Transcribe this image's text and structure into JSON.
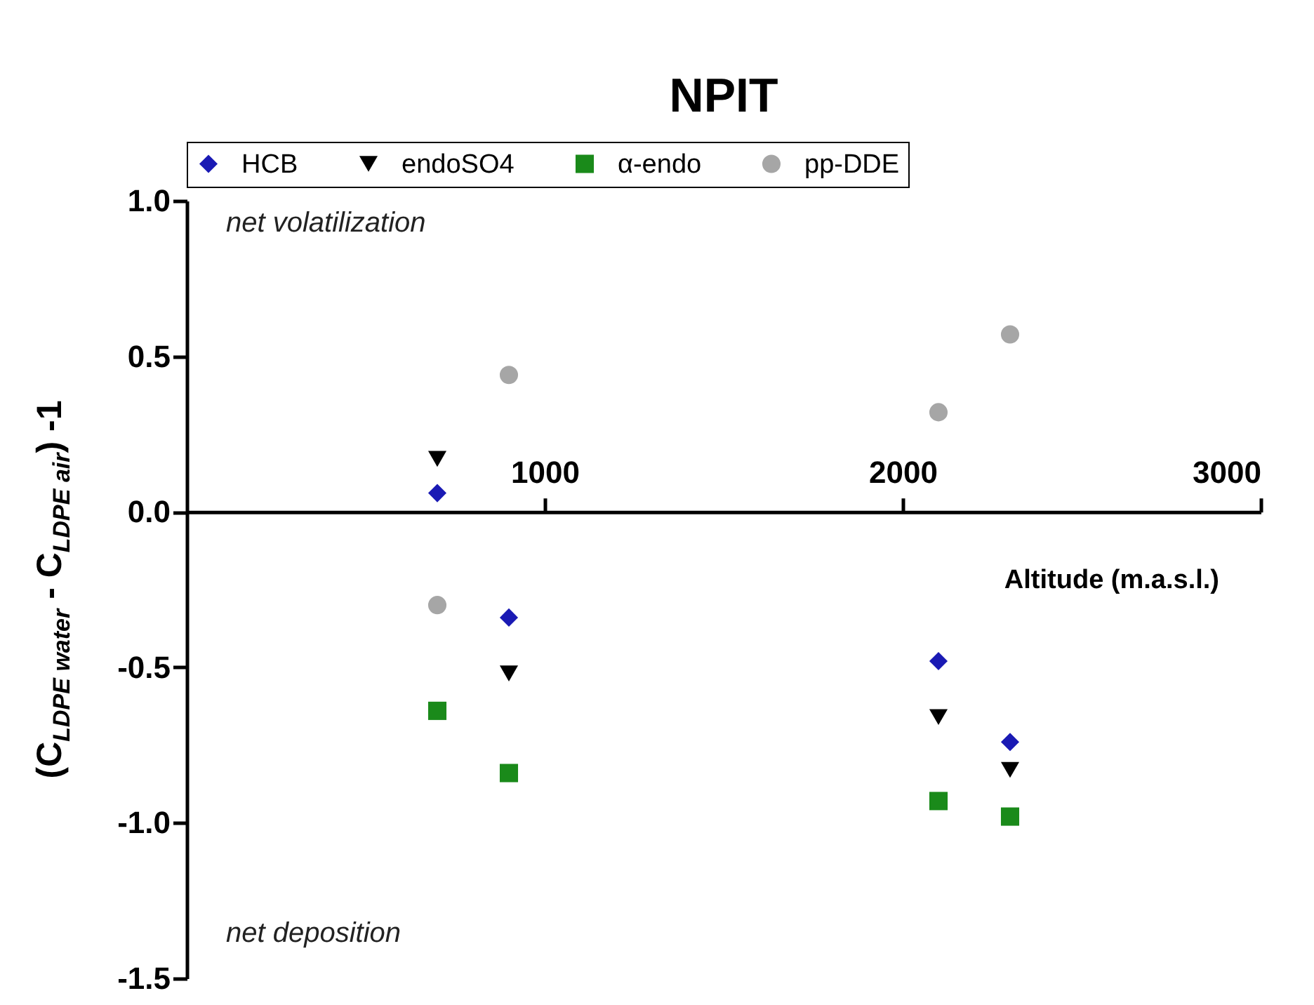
{
  "chart_data": {
    "type": "scatter",
    "title": "NPIT",
    "xlabel": "Altitude (m.a.s.l.)",
    "ylabel": "(C$_{LDPE water}$ - C$_{LDPE air}$) -1",
    "x": [
      700,
      900,
      2100,
      2300
    ],
    "xlim": [
      0,
      3000
    ],
    "xticks": [
      1000,
      2000,
      3000
    ],
    "ylim": [
      -1.5,
      1.0
    ],
    "yticks": [
      {
        "value": -1.5,
        "label": "-1.5"
      },
      {
        "value": -1.0,
        "label": "-1.0"
      },
      {
        "value": -0.5,
        "label": "-0.5"
      },
      {
        "value": 0.0,
        "label": "0.0"
      },
      {
        "value": 0.5,
        "label": "0.5"
      },
      {
        "value": 1.0,
        "label": "1.0"
      }
    ],
    "grid": false,
    "legend": "top",
    "annotations": [
      "net volatilization",
      "net deposition"
    ],
    "series": [
      {
        "name": "HCB",
        "color": "#1a1ab4",
        "marker": "diamond",
        "values": [
          0.06,
          -0.34,
          -0.48,
          -0.74
        ]
      },
      {
        "name": "endoSO4",
        "color": "#000000",
        "marker": "triangle-down",
        "values": [
          0.17,
          -0.52,
          -0.66,
          -0.83
        ]
      },
      {
        "name": "α-endo",
        "color": "#1a8a1a",
        "marker": "square",
        "values": [
          -0.64,
          -0.84,
          -0.93,
          -0.98
        ]
      },
      {
        "name": "pp-DDE",
        "color": "#a6a6a6",
        "marker": "circle",
        "values": [
          -0.3,
          0.44,
          0.32,
          0.57
        ]
      }
    ]
  }
}
